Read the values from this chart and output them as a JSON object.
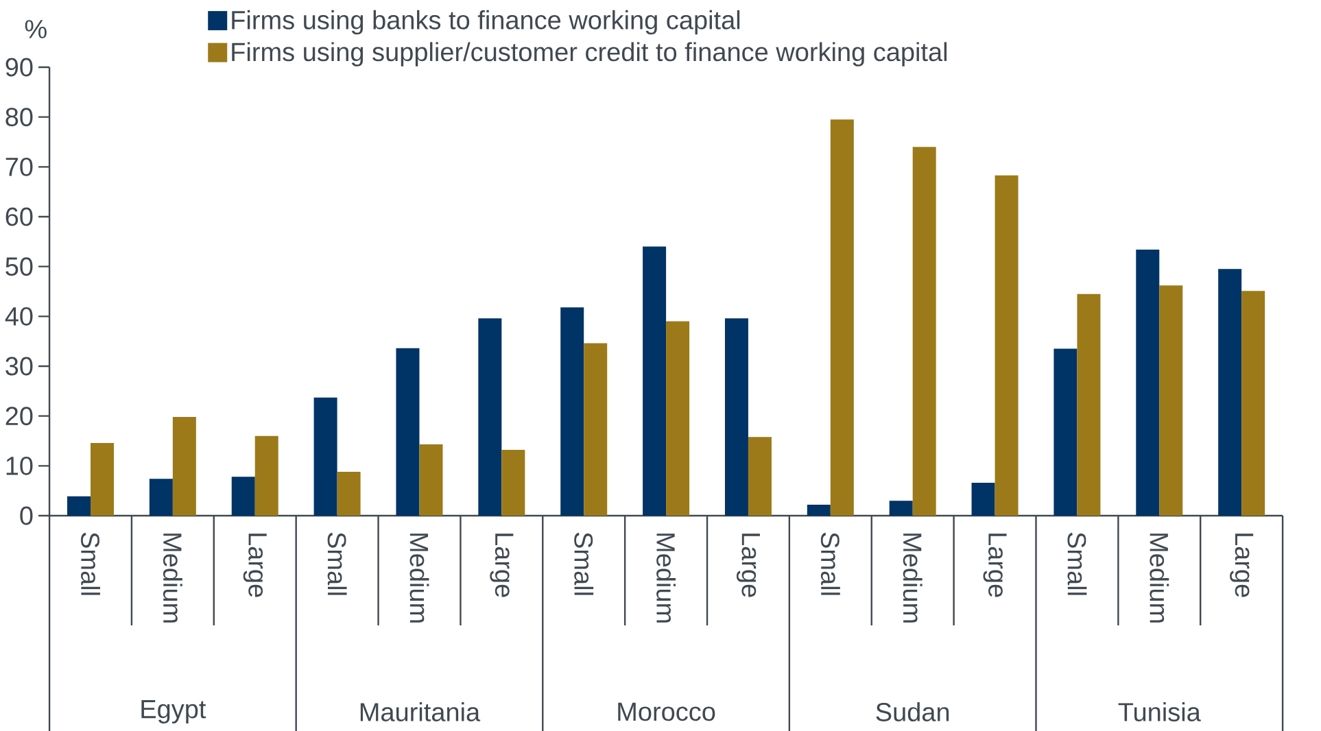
{
  "chart_data": {
    "type": "bar",
    "ylabel": "%",
    "categories": [
      "Small",
      "Medium",
      "Large",
      "Small",
      "Medium",
      "Large",
      "Small",
      "Medium",
      "Large",
      "Small",
      "Medium",
      "Large",
      "Small",
      "Medium",
      "Large"
    ],
    "annotations": [
      "Egypt",
      "Mauritania",
      "Morocco",
      "Sudan",
      "Tunisia"
    ],
    "series": [
      {
        "name": "Firms using banks to finance working capital",
        "color": "#003366",
        "values": [
          3.9,
          7.4,
          7.8,
          23.7,
          33.6,
          39.6,
          41.8,
          54,
          39.6,
          2.2,
          3,
          6.6,
          33.5,
          53.4,
          49.5
        ]
      },
      {
        "name": "Firms using supplier/customer credit to finance working capital",
        "color": "#9c7a1a",
        "values": [
          14.6,
          19.8,
          16,
          8.8,
          14.3,
          13.2,
          34.6,
          39,
          15.8,
          79.5,
          74,
          68.3,
          44.5,
          46.2,
          45.1
        ]
      }
    ],
    "ylim": [
      0,
      90
    ],
    "yticks": [
      0,
      10,
      20,
      30,
      40,
      50,
      60,
      70,
      80,
      90
    ],
    "grid": false,
    "legend": "top"
  }
}
